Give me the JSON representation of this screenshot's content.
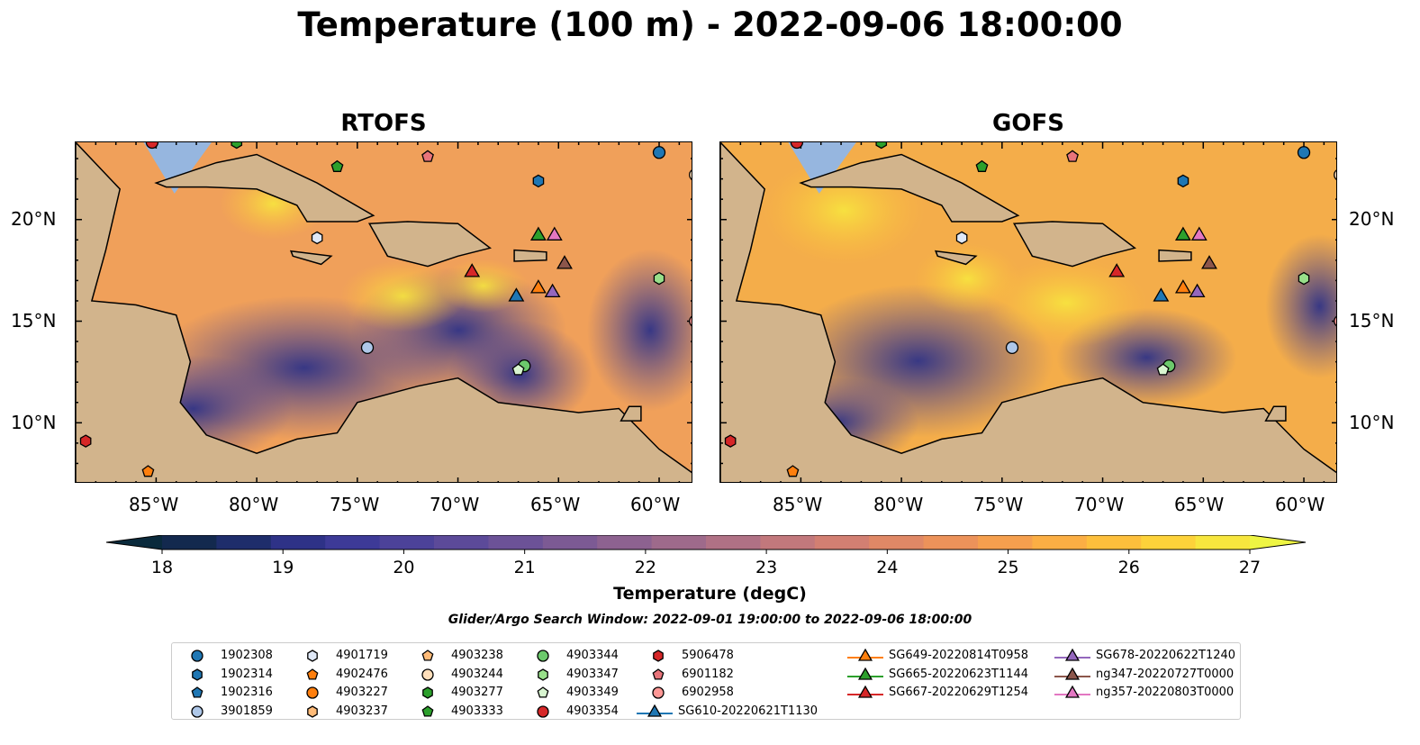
{
  "figure": {
    "title": "Temperature (100 m) - 2022-09-06 18:00:00",
    "panels": [
      {
        "title": "RTOFS",
        "model_key": "rtofs"
      },
      {
        "title": "GOFS",
        "model_key": "gofs"
      }
    ],
    "lon_ticks": [
      "85°W",
      "80°W",
      "75°W",
      "70°W",
      "65°W",
      "60°W"
    ],
    "lat_ticks": [
      "20°N",
      "15°N",
      "10°N"
    ],
    "colorbar": {
      "label": "Temperature (degC)",
      "ticks": [
        "18",
        "19",
        "20",
        "21",
        "22",
        "23",
        "24",
        "25",
        "26",
        "27"
      ],
      "colors": [
        "#0a2a3c",
        "#13294e",
        "#1e2d6b",
        "#2e3287",
        "#3d3a97",
        "#4c4299",
        "#5c4a99",
        "#6c5297",
        "#7c5a94",
        "#8d6290",
        "#9e6a8b",
        "#b07185",
        "#c2787c",
        "#d27f72",
        "#e08866",
        "#ec925a",
        "#f59f4e",
        "#fbae44",
        "#fdbf3c",
        "#fdd23a",
        "#f7e63e",
        "#eef543"
      ]
    },
    "search_window": "Glider/Argo Search Window: 2022-09-01 19:00:00 to 2022-09-06 18:00:00"
  },
  "legend": [
    {
      "label": "1902308",
      "color": "#1f77b4",
      "shape": "circle"
    },
    {
      "label": "1902314",
      "color": "#1f77b4",
      "shape": "hexagon"
    },
    {
      "label": "1902316",
      "color": "#1f77b4",
      "shape": "pentagon"
    },
    {
      "label": "3901859",
      "color": "#aec7e8",
      "shape": "circle"
    },
    {
      "label": "4901719",
      "color": "#dfe8f7",
      "shape": "hexagon"
    },
    {
      "label": "4902476",
      "color": "#ff7f0e",
      "shape": "pentagon"
    },
    {
      "label": "4903227",
      "color": "#ff7f0e",
      "shape": "circle"
    },
    {
      "label": "4903237",
      "color": "#ffbb78",
      "shape": "hexagon"
    },
    {
      "label": "4903238",
      "color": "#ffbb78",
      "shape": "pentagon"
    },
    {
      "label": "4903244",
      "color": "#ffdfbb",
      "shape": "circle"
    },
    {
      "label": "4903277",
      "color": "#2ca02c",
      "shape": "hexagon"
    },
    {
      "label": "4903333",
      "color": "#2ca02c",
      "shape": "pentagon"
    },
    {
      "label": "4903344",
      "color": "#6cc96c",
      "shape": "circle"
    },
    {
      "label": "4903347",
      "color": "#98df8a",
      "shape": "hexagon"
    },
    {
      "label": "4903349",
      "color": "#d8f5d0",
      "shape": "pentagon"
    },
    {
      "label": "4903354",
      "color": "#d62728",
      "shape": "circle"
    },
    {
      "label": "5906478",
      "color": "#d62728",
      "shape": "hexagon"
    },
    {
      "label": "6901182",
      "color": "#e8747a",
      "shape": "pentagon"
    },
    {
      "label": "6902958",
      "color": "#ff9896",
      "shape": "circle"
    },
    {
      "label": "SG610-20220621T1130",
      "color": "#1f77b4",
      "shape": "triangle"
    },
    {
      "label": "SG649-20220814T0958",
      "color": "#ff7f0e",
      "shape": "triangle"
    },
    {
      "label": "SG665-20220623T1144",
      "color": "#2ca02c",
      "shape": "triangle"
    },
    {
      "label": "SG667-20220629T1254",
      "color": "#d62728",
      "shape": "triangle"
    },
    {
      "label": "SG678-20220622T1240",
      "color": "#9467bd",
      "shape": "triangle"
    },
    {
      "label": "ng347-20220727T0000",
      "color": "#8c564b",
      "shape": "triangle"
    },
    {
      "label": "ng357-20220803T0000",
      "color": "#e377c2",
      "shape": "triangle"
    }
  ],
  "observations": [
    {
      "id": "1902308",
      "lon": -60.0,
      "lat": 23.3
    },
    {
      "id": "1902314",
      "lon": -66.0,
      "lat": 21.9
    },
    {
      "id": "4901719",
      "lon": -77.0,
      "lat": 19.1
    },
    {
      "id": "3901859",
      "lon": -74.5,
      "lat": 13.7
    },
    {
      "id": "4903244",
      "lon": -58.2,
      "lat": 22.2
    },
    {
      "id": "4903347",
      "lon": -60.0,
      "lat": 17.1
    },
    {
      "id": "4903333",
      "lon": -76.0,
      "lat": 22.6
    },
    {
      "id": "6901182",
      "lon": -71.5,
      "lat": 23.1
    },
    {
      "id": "6902958",
      "lon": -58.2,
      "lat": 15.0
    },
    {
      "id": "4903344",
      "lon": -66.7,
      "lat": 12.8
    },
    {
      "id": "4903349",
      "lon": -67.0,
      "lat": 12.6
    },
    {
      "id": "5906478",
      "lon": -88.5,
      "lat": 9.1
    },
    {
      "id": "4902476",
      "lon": -85.4,
      "lat": 7.6
    },
    {
      "id": "4903354",
      "lon": -85.2,
      "lat": 23.8
    },
    {
      "id": "4903277",
      "lon": -81.0,
      "lat": 23.8
    },
    {
      "id": "SG610-20220621T1130",
      "lon": -67.1,
      "lat": 16.2
    },
    {
      "id": "SG649-20220814T0958",
      "lon": -66.0,
      "lat": 16.6
    },
    {
      "id": "SG665-20220623T1144",
      "lon": -66.0,
      "lat": 19.2
    },
    {
      "id": "SG667-20220629T1254",
      "lon": -69.3,
      "lat": 17.4
    },
    {
      "id": "SG678-20220622T1240",
      "lon": -65.3,
      "lat": 16.4
    },
    {
      "id": "ng347-20220727T0000",
      "lon": -64.7,
      "lat": 17.8
    },
    {
      "id": "ng357-20220803T0000",
      "lon": -65.2,
      "lat": 19.2
    }
  ],
  "map_extent": {
    "lon_min": -89,
    "lon_max": -58.3,
    "lat_min": 7,
    "lat_max": 23.8
  }
}
